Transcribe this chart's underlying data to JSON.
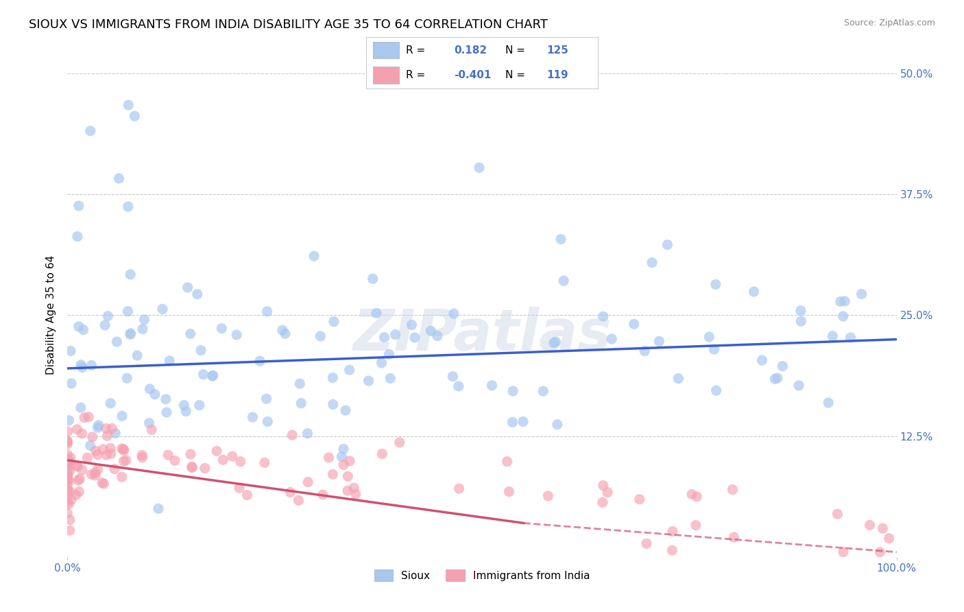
{
  "title": "SIOUX VS IMMIGRANTS FROM INDIA DISABILITY AGE 35 TO 64 CORRELATION CHART",
  "source": "Source: ZipAtlas.com",
  "ylabel": "Disability Age 35 to 64",
  "legend_entries": [
    {
      "label": "Sioux",
      "color": "#a8c8f0",
      "R": 0.182,
      "N": 125
    },
    {
      "label": "Immigrants from India",
      "color": "#f5a0b0",
      "R": -0.401,
      "N": 119
    }
  ],
  "xlim": [
    0,
    100
  ],
  "ylim": [
    0,
    50
  ],
  "yticks": [
    0,
    12.5,
    25.0,
    37.5,
    50.0
  ],
  "ytick_labels_right": [
    "",
    "12.5%",
    "25.0%",
    "37.5%",
    "50.0%"
  ],
  "xtick_labels": [
    "0.0%",
    "100.0%"
  ],
  "background_color": "#ffffff",
  "grid_color": "#c8c8c8",
  "watermark": "ZIPatlas",
  "sioux_color": "#a8c8f0",
  "india_color": "#f5a0b0",
  "sioux_line_color": "#3a5fcd",
  "india_line_color": "#d05070",
  "title_fontsize": 13,
  "axis_label_fontsize": 11,
  "tick_label_color": "#4472c4",
  "sioux_trend": {
    "x_start": 0,
    "x_end": 100,
    "y_start": 19.5,
    "y_end": 22.5
  },
  "india_trend": {
    "x_start": 0,
    "x_end": 55,
    "y_start": 10.0,
    "y_end": 3.5
  },
  "india_trend_dash": {
    "x_start": 55,
    "x_end": 100,
    "y_start": 3.5,
    "y_end": 0.5
  }
}
